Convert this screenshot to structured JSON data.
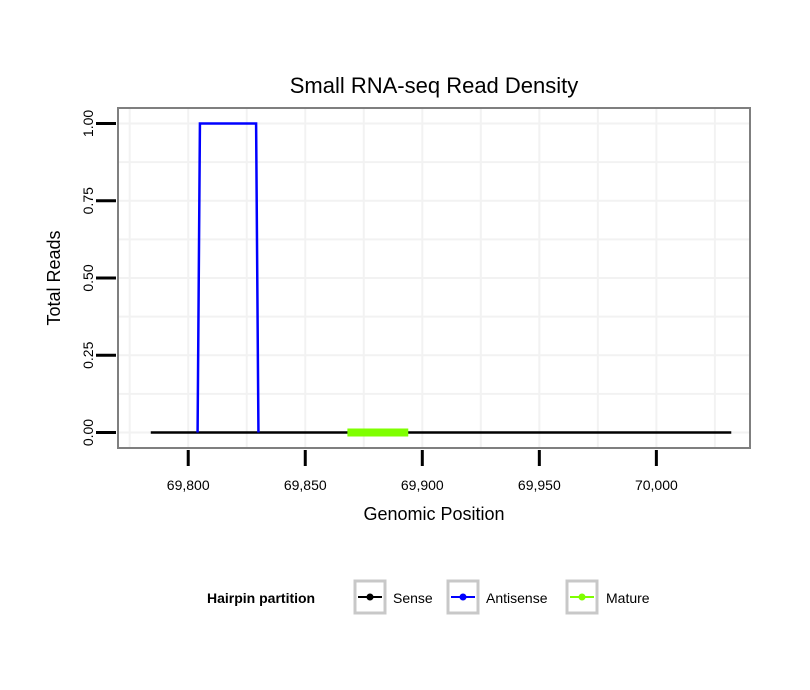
{
  "chart_data": {
    "type": "line",
    "title": "Small RNA-seq Read Density",
    "xlabel": "Genomic Position",
    "ylabel": "Total Reads",
    "xlim": [
      69770,
      70040
    ],
    "ylim": [
      -0.05,
      1.05
    ],
    "x_ticks": [
      69800,
      69850,
      69900,
      69950,
      70000
    ],
    "x_tick_labels": [
      "69,800",
      "69,850",
      "69,900",
      "69,950",
      "70,000"
    ],
    "y_ticks": [
      0,
      0.25,
      0.5,
      0.75,
      1
    ],
    "y_tick_labels": [
      "0.00",
      "0.25",
      "0.50",
      "0.75",
      "1.00"
    ],
    "grid": true,
    "legend": {
      "title": "Hairpin partition",
      "position": "bottom",
      "entries": [
        "Sense",
        "Antisense",
        "Mature"
      ]
    },
    "series": [
      {
        "name": "Sense",
        "color": "#000000",
        "x": [
          69784,
          70032
        ],
        "y": [
          0,
          0
        ]
      },
      {
        "name": "Antisense",
        "color": "#0000ff",
        "x": [
          69804,
          69805,
          69829,
          69830
        ],
        "y": [
          0,
          1,
          1,
          0
        ]
      },
      {
        "name": "Mature",
        "color": "#7fff00",
        "x": [
          69868,
          69894
        ],
        "y": [
          0,
          0
        ]
      }
    ]
  }
}
